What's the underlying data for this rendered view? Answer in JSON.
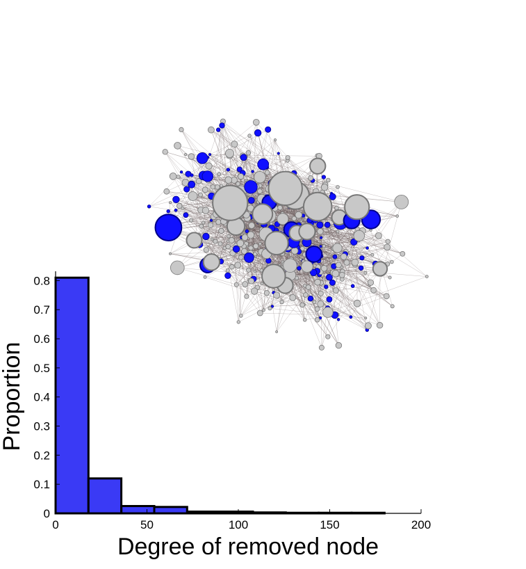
{
  "chart_data": {
    "type": "bar",
    "title": "",
    "xlabel": "Degree of removed node",
    "ylabel": "Proportion",
    "xlim": [
      0,
      200
    ],
    "ylim": [
      0,
      0.82
    ],
    "xticks": [
      "0",
      "50",
      "100",
      "150",
      "200"
    ],
    "yticks": [
      "0",
      "0.1",
      "0.2",
      "0.3",
      "0.4",
      "0.5",
      "0.6",
      "0.7",
      "0.8"
    ],
    "bin_width": 18,
    "bins": [
      {
        "x0": 0,
        "x1": 18,
        "value": 0.81
      },
      {
        "x0": 18,
        "x1": 36,
        "value": 0.12
      },
      {
        "x0": 36,
        "x1": 54,
        "value": 0.025
      },
      {
        "x0": 54,
        "x1": 72,
        "value": 0.022
      },
      {
        "x0": 72,
        "x1": 90,
        "value": 0.006
      },
      {
        "x0": 90,
        "x1": 108,
        "value": 0.006
      },
      {
        "x0": 108,
        "x1": 126,
        "value": 0.003
      },
      {
        "x0": 126,
        "x1": 144,
        "value": 0.002
      },
      {
        "x0": 144,
        "x1": 162,
        "value": 0.002
      },
      {
        "x0": 162,
        "x1": 180,
        "value": 0.002
      }
    ],
    "colors": {
      "bar_fill": "#3a3af5",
      "bar_edge": "#000000"
    },
    "grid": false,
    "legend": "none"
  },
  "background_network": {
    "description_type": "network-visualization",
    "colors": {
      "gray_node": "#c8c8c8",
      "gray_node_edge": "#777777",
      "blue_node": "#1010ff",
      "blue_node_edge": "#000088",
      "link": "#6a5a5a"
    }
  }
}
